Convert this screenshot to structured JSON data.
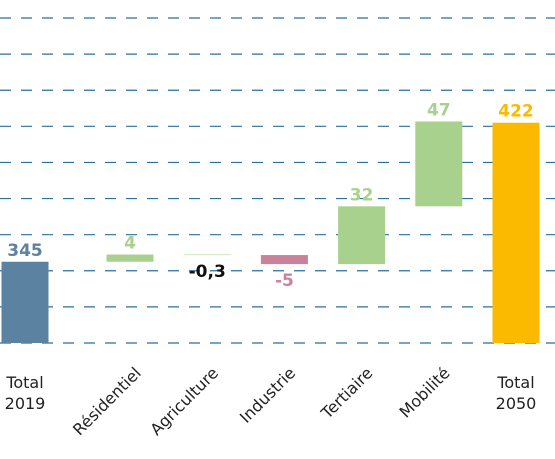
{
  "chart_data": {
    "type": "waterfall",
    "categories": [
      "Total 2019",
      "Résidentiel",
      "Agriculture",
      "Industrie",
      "Tertiaire",
      "Mobilité",
      "Total 2050"
    ],
    "values": [
      345,
      4,
      -0.3,
      -5,
      32,
      47,
      422
    ],
    "value_labels": [
      "345",
      "4",
      "-0,3",
      "-5",
      "32",
      "47",
      "422"
    ],
    "total": [
      true,
      false,
      false,
      false,
      false,
      false,
      true
    ],
    "colors": [
      "#5b82a0",
      "#a9d18e",
      "#a9d18e",
      "#c98299",
      "#a9d18e",
      "#a9d18e",
      "#fbb900"
    ],
    "label_colors": [
      "#5b82a0",
      "#a9d18e",
      "#111111",
      "#c98299",
      "#a9d18e",
      "#a9d18e",
      "#fbb900"
    ],
    "ylim": [
      300,
      480
    ],
    "yticks": [
      300,
      320,
      340,
      360,
      380,
      400,
      420,
      440,
      460,
      480
    ],
    "grid": true
  }
}
